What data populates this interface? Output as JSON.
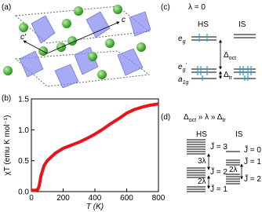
{
  "panels": {
    "a": {
      "label": "(a)",
      "axis_c": "c",
      "axis_c2": "c'"
    },
    "b": {
      "label": "(b)"
    },
    "c": {
      "label": "(c)",
      "title": "λ = 0",
      "hs": "HS",
      "is": "IS",
      "eg": [
        "e",
        "g"
      ],
      "eg2": [
        "e",
        "g",
        "'"
      ],
      "a1g": [
        "a",
        "1g"
      ],
      "doct": [
        "Δ",
        "oct"
      ],
      "dtr": [
        "Δ",
        "tr"
      ]
    },
    "d": {
      "label": "(d)",
      "title": [
        "Δ",
        "oct",
        " » λ » Δ",
        "tr"
      ],
      "hs": "HS",
      "is": "IS",
      "hs_levels": [
        "J̃ = 3",
        "J̃ = 2",
        "J̃ = 1"
      ],
      "hs_gaps": [
        "3λ",
        "2λ"
      ],
      "is_levels": [
        "J̃ = 0",
        "J̃ = 1",
        "J̃ = 2"
      ],
      "is_gaps": [
        "2λ"
      ]
    }
  },
  "chart_data": {
    "type": "line",
    "xlabel": "T (K)",
    "ylabel": "χT (emu K mol⁻¹)",
    "x": [
      0,
      20,
      40,
      50,
      60,
      80,
      100,
      150,
      200,
      250,
      300,
      350,
      400,
      450,
      500,
      550,
      600,
      650,
      700,
      750,
      800
    ],
    "series": [
      {
        "color": "#e8141c",
        "values": [
          0.02,
          0.02,
          0.03,
          0.1,
          0.25,
          0.42,
          0.5,
          0.62,
          0.7,
          0.75,
          0.8,
          0.86,
          0.93,
          1.01,
          1.1,
          1.18,
          1.27,
          1.33,
          1.37,
          1.4,
          1.42
        ]
      }
    ],
    "xlim": [
      0,
      800
    ],
    "xticks": [
      0,
      200,
      400,
      600,
      800
    ],
    "ylim": [
      0,
      1.5
    ],
    "yticks": [
      {
        "value": 0,
        "label": "0.0"
      },
      {
        "value": 0.5,
        "label": "0.5"
      },
      {
        "value": 1,
        "label": "1.0"
      },
      {
        "value": 1.5,
        "label": "1.5"
      }
    ]
  }
}
